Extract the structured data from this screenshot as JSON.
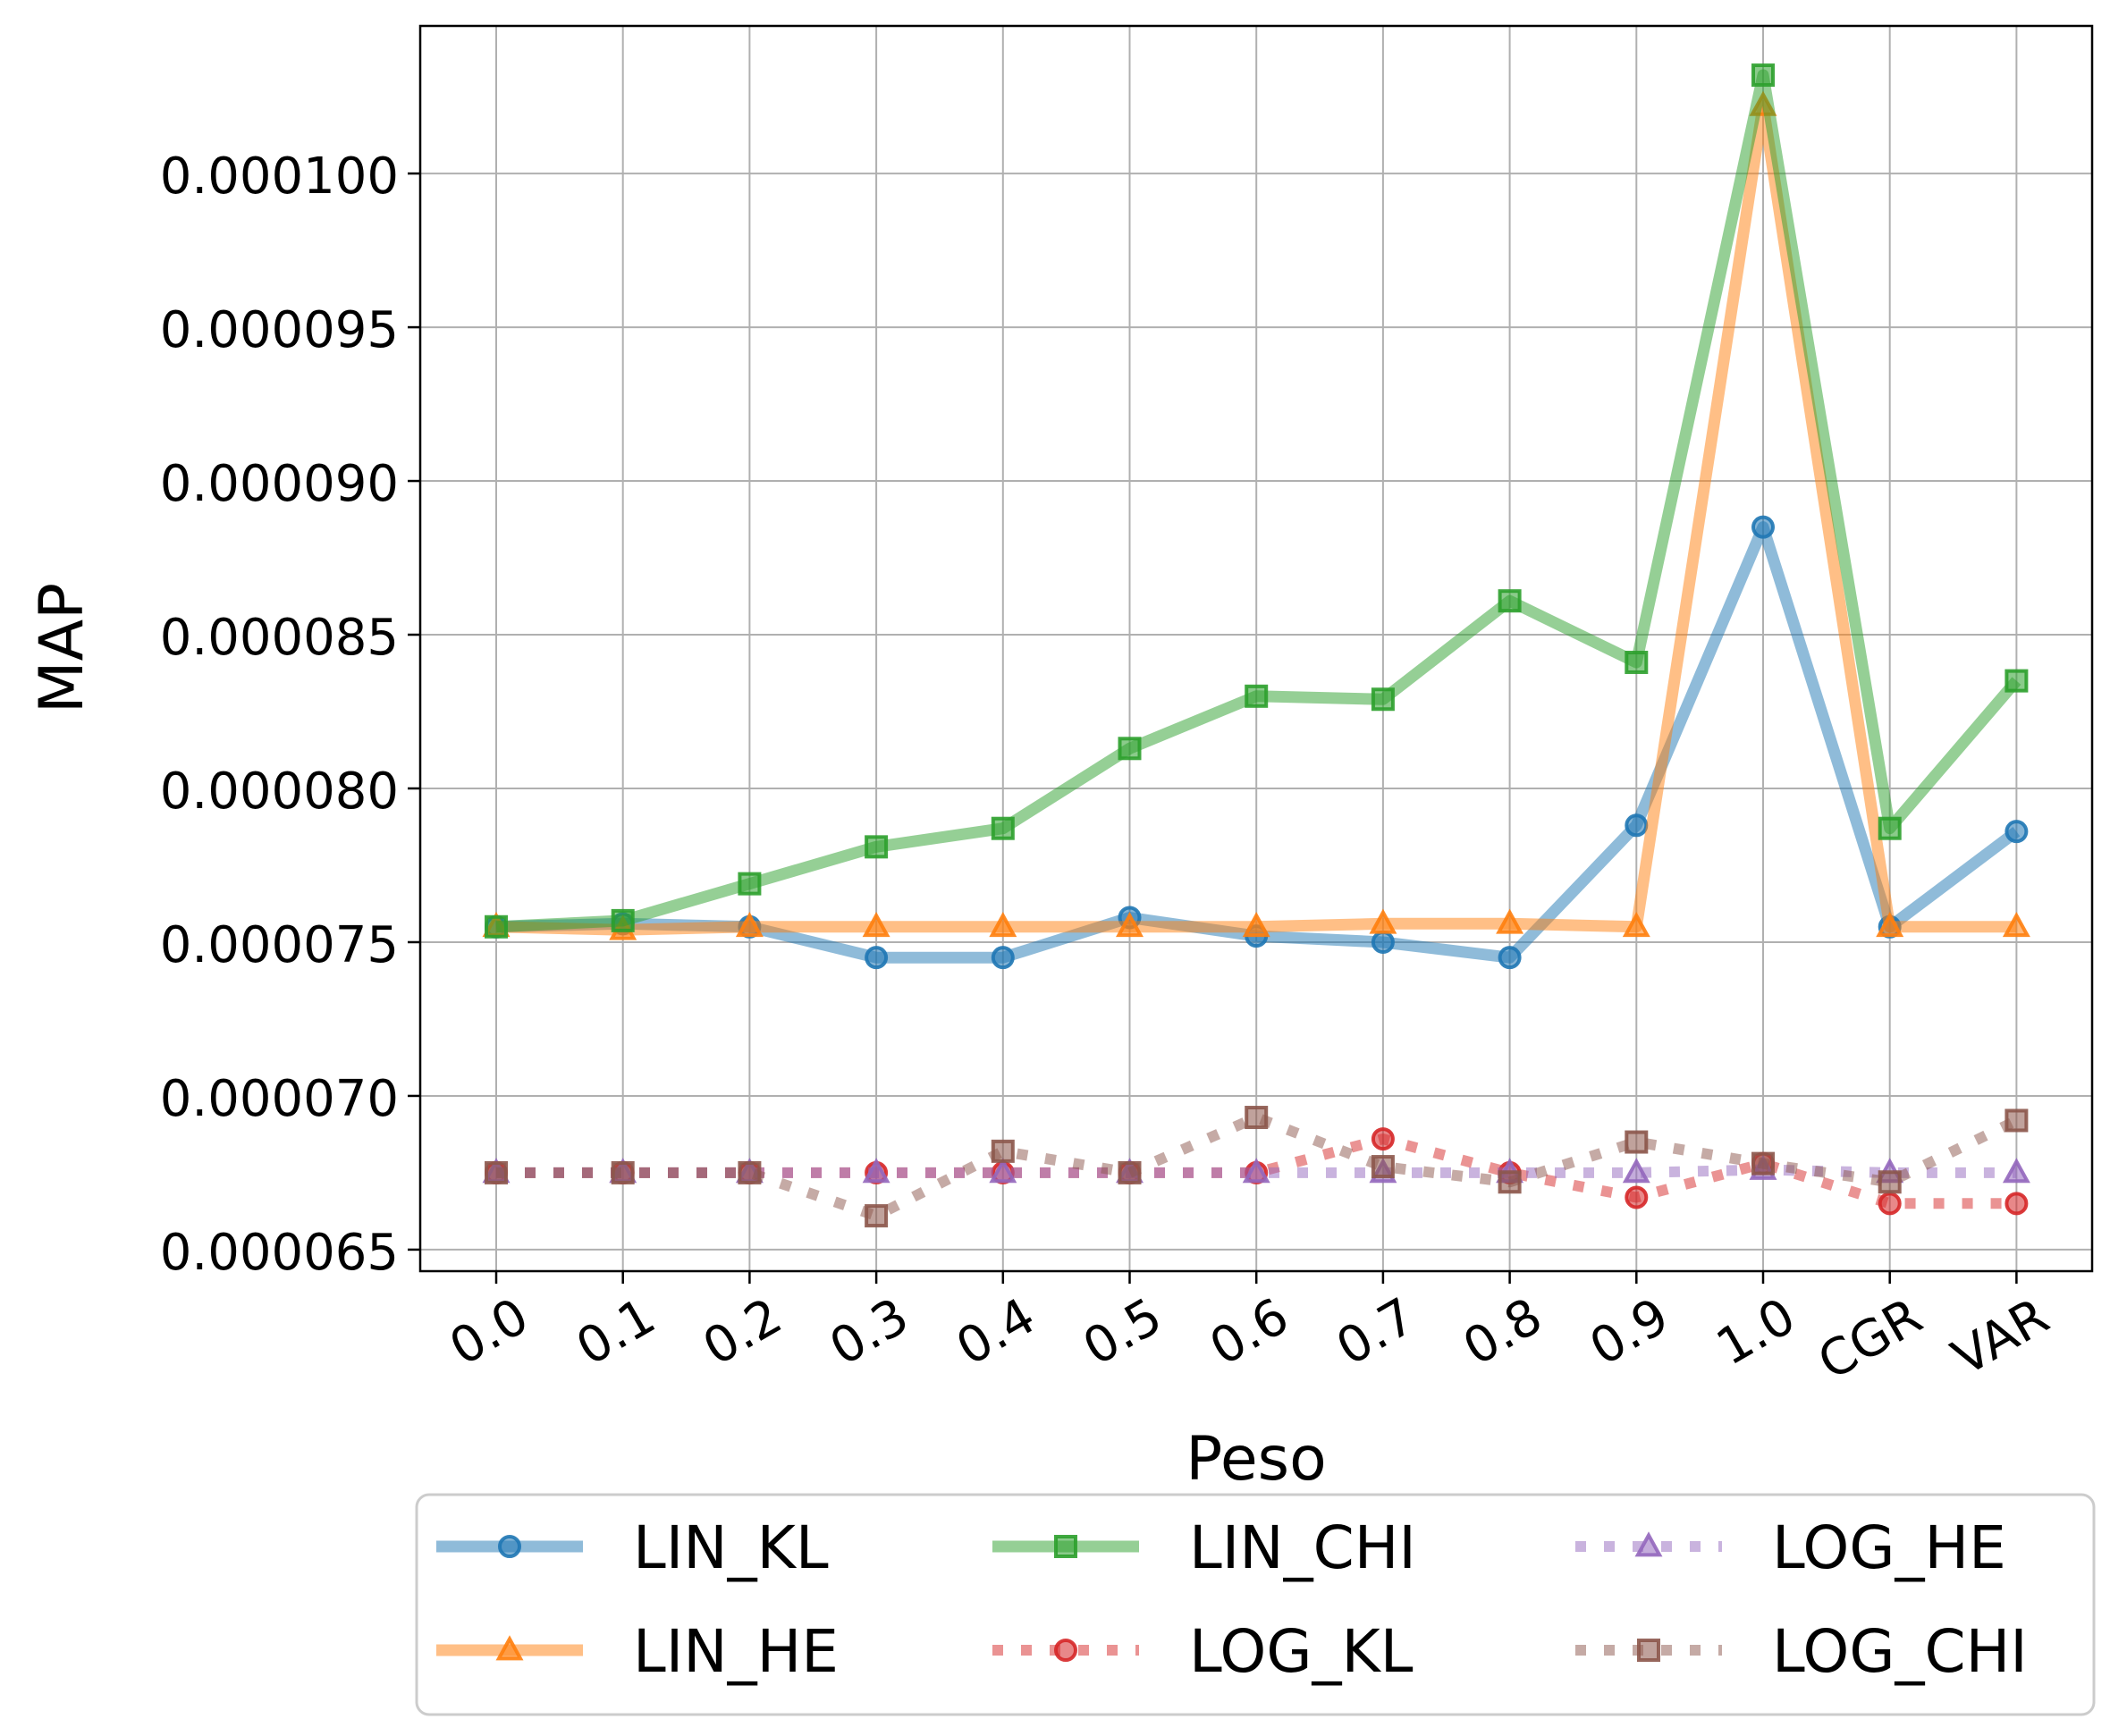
{
  "chart_data": {
    "type": "line",
    "title": "",
    "xlabel": "Peso",
    "ylabel": "MAP",
    "categories": [
      "0.0",
      "0.1",
      "0.2",
      "0.3",
      "0.4",
      "0.5",
      "0.6",
      "0.7",
      "0.8",
      "0.9",
      "1.0",
      "CGR",
      "VAR"
    ],
    "y_ticks": [
      "0.000065",
      "0.000070",
      "0.000075",
      "0.000080",
      "0.000085",
      "0.000090",
      "0.000095",
      "0.000100"
    ],
    "ylim": [
      6.43e-05,
      0.0001048
    ],
    "grid": true,
    "legend_position": "bottom",
    "series": [
      {
        "name": "LIN_KL",
        "color": "#1f77b4",
        "style": "solid",
        "marker": "circle",
        "values": [
          7.55e-05,
          7.56e-05,
          7.55e-05,
          7.45e-05,
          7.45e-05,
          7.58e-05,
          7.52e-05,
          7.5e-05,
          7.45e-05,
          7.88e-05,
          8.85e-05,
          7.55e-05,
          7.86e-05
        ]
      },
      {
        "name": "LIN_HE",
        "color": "#ff7f0e",
        "style": "solid",
        "marker": "triangle",
        "values": [
          7.55e-05,
          7.54e-05,
          7.55e-05,
          7.55e-05,
          7.55e-05,
          7.55e-05,
          7.55e-05,
          7.56e-05,
          7.56e-05,
          7.55e-05,
          0.0001022,
          7.55e-05,
          7.55e-05
        ]
      },
      {
        "name": "LIN_CHI",
        "color": "#2ca02c",
        "style": "solid",
        "marker": "square",
        "values": [
          7.55e-05,
          7.57e-05,
          7.69e-05,
          7.81e-05,
          7.87e-05,
          8.13e-05,
          8.3e-05,
          8.29e-05,
          8.61e-05,
          8.41e-05,
          0.0001032,
          7.87e-05,
          8.35e-05
        ]
      },
      {
        "name": "LOG_KL",
        "color": "#d62728",
        "style": "dotted",
        "marker": "circle",
        "values": [
          6.75e-05,
          6.75e-05,
          6.75e-05,
          6.75e-05,
          6.75e-05,
          6.75e-05,
          6.75e-05,
          6.86e-05,
          6.75e-05,
          6.67e-05,
          6.78e-05,
          6.65e-05,
          6.65e-05
        ]
      },
      {
        "name": "LOG_HE",
        "color": "#9467bd",
        "style": "dotted",
        "marker": "triangle",
        "values": [
          6.75e-05,
          6.75e-05,
          6.75e-05,
          6.75e-05,
          6.75e-05,
          6.75e-05,
          6.75e-05,
          6.75e-05,
          6.75e-05,
          6.75e-05,
          6.76e-05,
          6.75e-05,
          6.75e-05
        ]
      },
      {
        "name": "LOG_CHI",
        "color": "#8c564b",
        "style": "dotted",
        "marker": "square",
        "values": [
          6.75e-05,
          6.75e-05,
          6.75e-05,
          6.61e-05,
          6.82e-05,
          6.75e-05,
          6.93e-05,
          6.77e-05,
          6.72e-05,
          6.85e-05,
          6.78e-05,
          6.72e-05,
          6.92e-05
        ]
      }
    ]
  }
}
